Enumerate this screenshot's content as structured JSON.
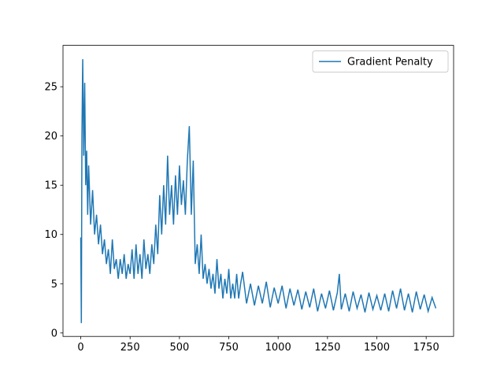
{
  "chart_data": {
    "type": "line",
    "x": [
      0,
      3,
      6,
      10,
      15,
      20,
      25,
      30,
      35,
      40,
      50,
      60,
      70,
      80,
      90,
      100,
      110,
      120,
      130,
      140,
      150,
      160,
      170,
      180,
      190,
      200,
      210,
      220,
      230,
      240,
      250,
      260,
      270,
      280,
      290,
      300,
      310,
      320,
      330,
      340,
      350,
      360,
      370,
      380,
      390,
      400,
      410,
      420,
      430,
      440,
      450,
      460,
      470,
      480,
      490,
      500,
      510,
      520,
      530,
      540,
      550,
      560,
      570,
      580,
      590,
      600,
      610,
      620,
      630,
      640,
      650,
      660,
      670,
      680,
      690,
      700,
      710,
      720,
      730,
      740,
      750,
      760,
      770,
      780,
      790,
      800,
      810,
      820,
      840,
      860,
      880,
      900,
      920,
      940,
      960,
      980,
      1000,
      1020,
      1040,
      1060,
      1080,
      1100,
      1120,
      1140,
      1160,
      1180,
      1200,
      1220,
      1240,
      1260,
      1280,
      1300,
      1310,
      1320,
      1340,
      1360,
      1380,
      1400,
      1420,
      1440,
      1460,
      1480,
      1500,
      1520,
      1540,
      1560,
      1580,
      1600,
      1620,
      1640,
      1660,
      1680,
      1700,
      1720,
      1740,
      1760,
      1780,
      1799
    ],
    "series": [
      {
        "name": "Gradient Penalty",
        "color": "#1f77b4",
        "values": [
          9.7,
          1.0,
          20,
          27.8,
          18,
          25.4,
          15,
          18.5,
          12,
          17,
          11,
          14.5,
          10,
          12,
          9,
          11,
          8,
          9.5,
          7,
          8.5,
          6,
          9.5,
          6.5,
          7.5,
          5.5,
          7.5,
          6,
          8,
          5.5,
          7,
          6,
          8.5,
          5.5,
          9,
          6,
          8,
          5.5,
          9.5,
          6.5,
          8,
          6,
          9,
          7,
          11,
          8,
          14,
          10,
          15,
          11,
          18,
          12,
          15,
          11,
          16,
          12,
          17,
          13,
          15.5,
          12,
          17.5,
          21,
          12,
          17.5,
          7,
          9,
          6,
          10,
          5.5,
          7,
          5,
          6.5,
          4.5,
          6,
          4,
          7.5,
          4.5,
          6,
          3.5,
          5.5,
          4,
          6.5,
          3.5,
          5,
          3.5,
          6,
          3.5,
          5,
          6.2,
          3,
          5,
          2.8,
          4.8,
          3,
          5.2,
          2.6,
          4.6,
          3,
          4.8,
          2.5,
          4.5,
          2.8,
          4.4,
          2.4,
          4.2,
          2.6,
          4.5,
          2.2,
          4,
          2.5,
          4.3,
          2.3,
          4.1,
          6,
          2.4,
          4,
          2.2,
          4.2,
          2.5,
          3.9,
          2.1,
          4.1,
          2.4,
          3.8,
          2.3,
          4,
          2.2,
          4.3,
          2.5,
          4.5,
          2.3,
          4,
          2.1,
          4.2,
          2.4,
          3.9,
          2.2,
          3.6,
          2.5
        ]
      }
    ],
    "xlim": [
      -89.95,
      1888.95
    ],
    "ylim": [
      -0.35,
      29.2
    ],
    "xticks": [
      0,
      250,
      500,
      750,
      1000,
      1250,
      1500,
      1750
    ],
    "yticks": [
      0,
      5,
      10,
      15,
      20,
      25
    ],
    "legend": "upper right"
  }
}
